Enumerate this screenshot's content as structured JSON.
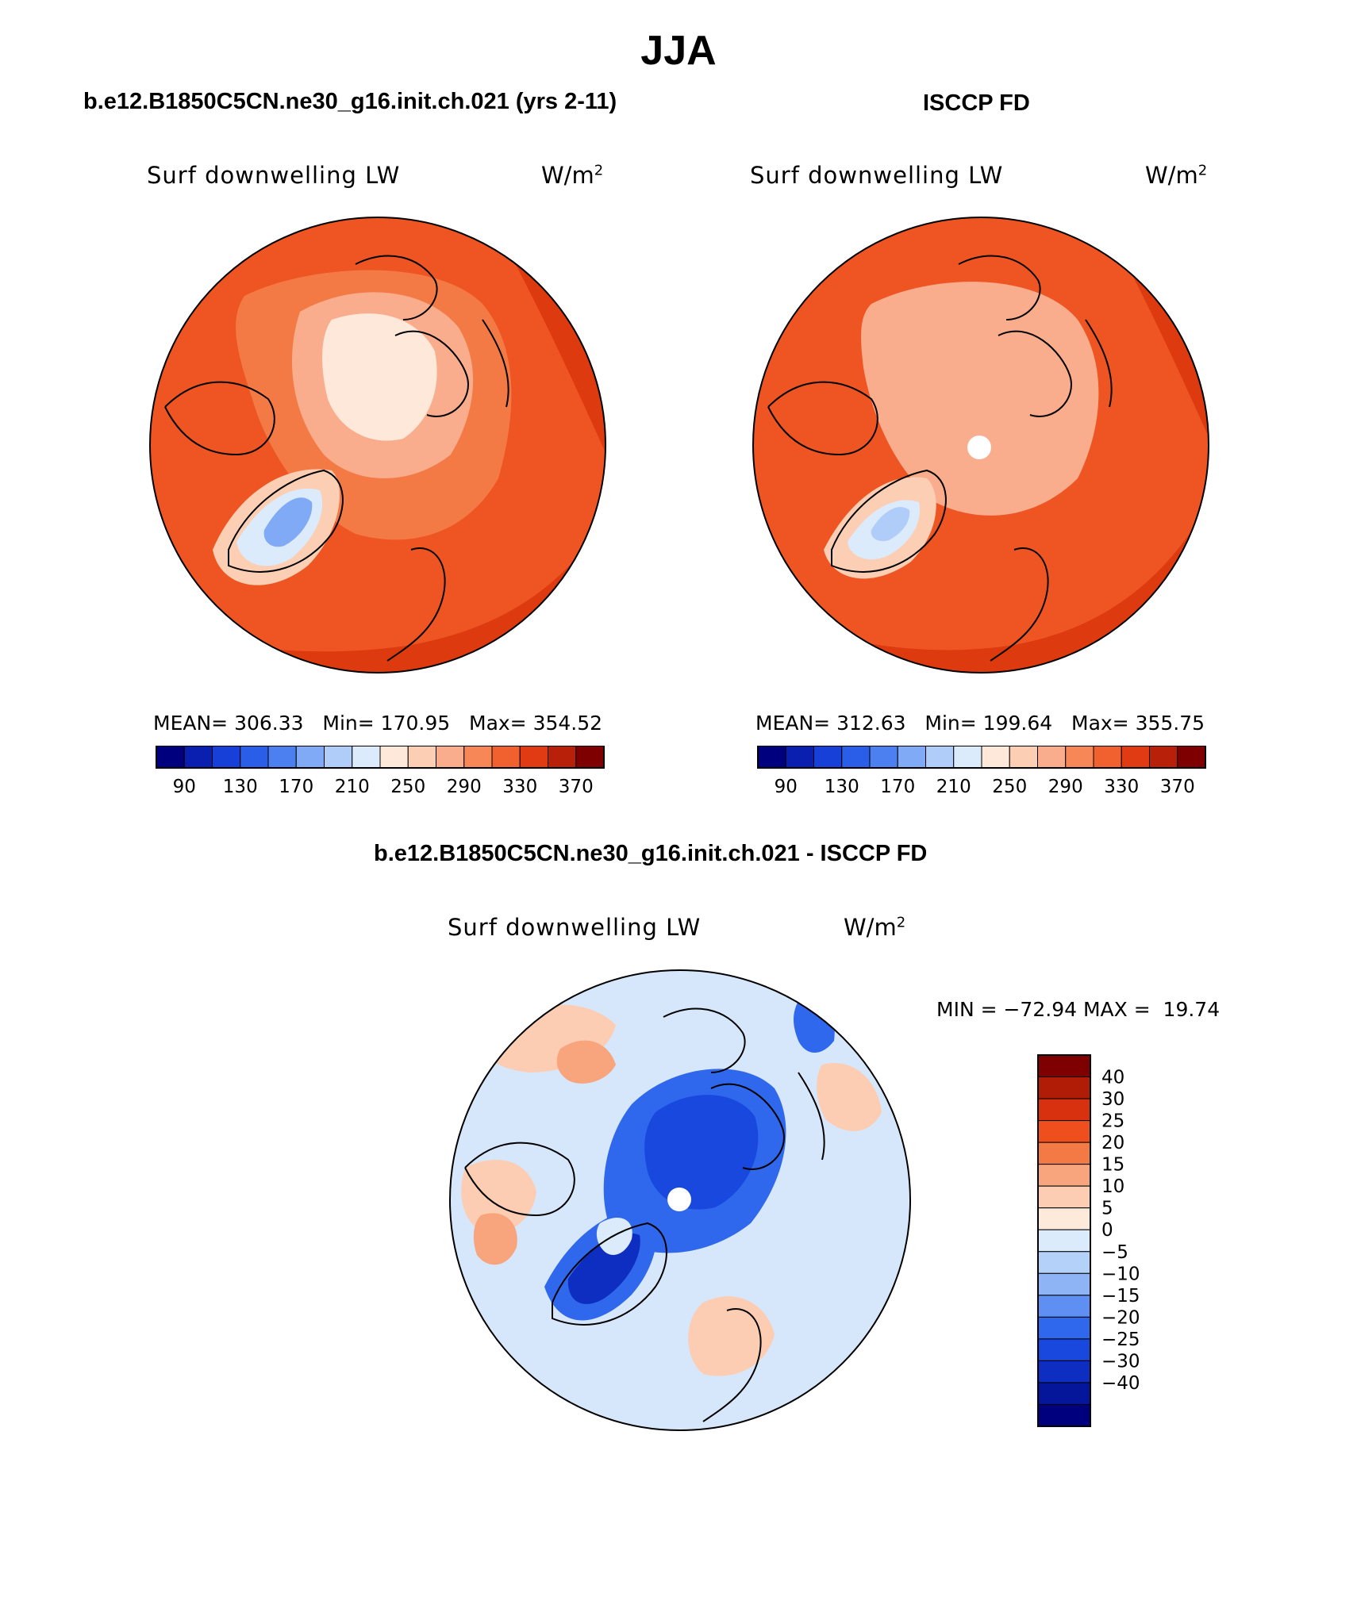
{
  "title": "JJA",
  "panels": {
    "model": {
      "header": "b.e12.B1850C5CN.ne30_g16.init.ch.021 (yrs 2-11)",
      "variable": "Surf downwelling LW",
      "units_base": "W/m",
      "units_exp": "2",
      "mean_label": "MEAN=",
      "mean": "306.33",
      "min_label": "Min=",
      "min": "170.95",
      "max_label": "Max=",
      "max": "354.52"
    },
    "obs": {
      "header": "ISCCP FD",
      "variable": "Surf downwelling LW",
      "units_base": "W/m",
      "units_exp": "2",
      "mean_label": "MEAN=",
      "mean": "312.63",
      "min_label": "Min=",
      "min": "199.64",
      "max_label": "Max=",
      "max": "355.75"
    },
    "diff": {
      "header": "b.e12.B1850C5CN.ne30_g16.init.ch.021 - ISCCP FD",
      "variable": "Surf downwelling LW",
      "units_base": "W/m",
      "units_exp": "2",
      "minmax_text": "MIN = −72.94 MAX =  19.74"
    }
  },
  "colorbars": {
    "abs": {
      "colors": [
        "#00007f",
        "#0a1fb0",
        "#1640d8",
        "#2a5ee9",
        "#4c80f0",
        "#80aaf5",
        "#b0ccf8",
        "#dbebfb",
        "#fde8da",
        "#fccfb4",
        "#faad8c",
        "#f78757",
        "#f1612f",
        "#e03b12",
        "#b82009",
        "#7f0000"
      ],
      "tick_labels": [
        "90",
        "130",
        "170",
        "210",
        "250",
        "290",
        "330",
        "370"
      ]
    },
    "diff": {
      "colors": [
        "#7f0000",
        "#b11c07",
        "#d8310f",
        "#ef4f1d",
        "#f47a45",
        "#f8a47c",
        "#fccdb2",
        "#feeadb",
        "#dbebfb",
        "#b4d1f9",
        "#8eb4f6",
        "#5f8ff2",
        "#3068ed",
        "#1848de",
        "#0d2ec0",
        "#05169b",
        "#00007f"
      ],
      "tick_labels": [
        "40",
        "30",
        "25",
        "20",
        "15",
        "10",
        "5",
        "0",
        "−5",
        "−10",
        "−15",
        "−20",
        "−25",
        "−30",
        "−40"
      ]
    }
  },
  "colors": {
    "abs_background": "#ee5522",
    "abs_outer": "#dd3a0f",
    "diff_background": "#d6e7fb"
  }
}
